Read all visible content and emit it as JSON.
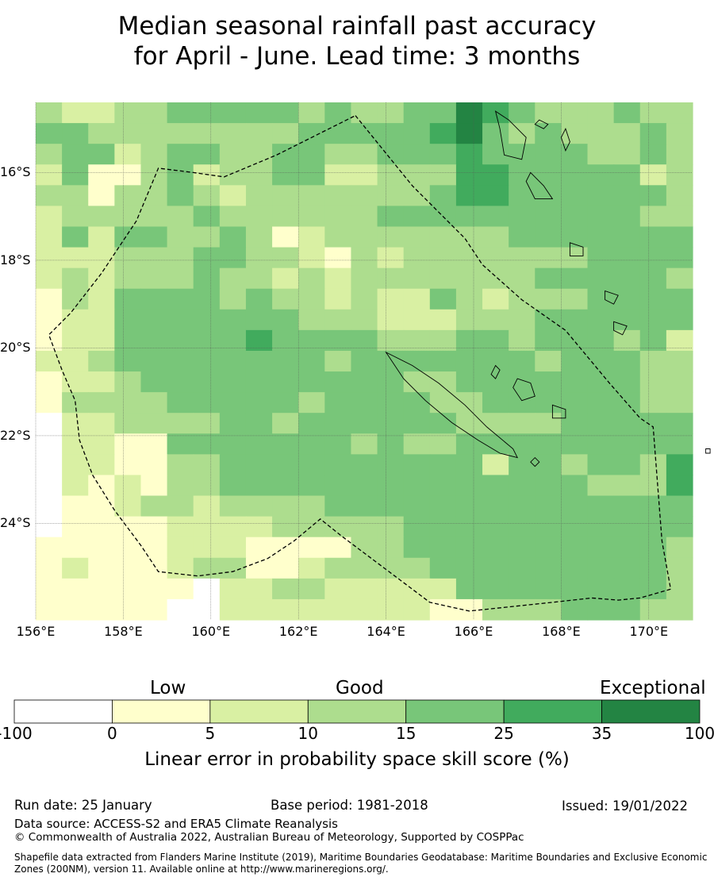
{
  "title": {
    "line1": "Median seasonal rainfall past accuracy",
    "line2": "for April - June. Lead time: 3 months"
  },
  "map": {
    "lon_range": [
      156.0,
      171.0
    ],
    "lat_range": [
      -26.2,
      -14.4
    ],
    "x_ticks": [
      {
        "lon": 156,
        "label": "156°E"
      },
      {
        "lon": 158,
        "label": "158°E"
      },
      {
        "lon": 160,
        "label": "160°E"
      },
      {
        "lon": 162,
        "label": "162°E"
      },
      {
        "lon": 164,
        "label": "164°E"
      },
      {
        "lon": 166,
        "label": "166°E"
      },
      {
        "lon": 168,
        "label": "168°E"
      },
      {
        "lon": 170,
        "label": "170°E"
      }
    ],
    "y_ticks": [
      {
        "lat": -16,
        "label": "16°S"
      },
      {
        "lat": -18,
        "label": "18°S"
      },
      {
        "lat": -20,
        "label": "20°S"
      },
      {
        "lat": -22,
        "label": "22°S"
      },
      {
        "lat": -24,
        "label": "24°S"
      }
    ],
    "eez_boundary": [
      [
        163.3,
        -14.7
      ],
      [
        164.6,
        -16.3
      ],
      [
        165.8,
        -17.5
      ],
      [
        166.2,
        -18.1
      ],
      [
        167.1,
        -18.9
      ],
      [
        168.1,
        -19.6
      ],
      [
        169.1,
        -20.8
      ],
      [
        169.8,
        -21.6
      ],
      [
        170.1,
        -21.8
      ],
      [
        170.3,
        -24.4
      ],
      [
        170.5,
        -25.5
      ],
      [
        169.8,
        -25.7
      ],
      [
        169.3,
        -25.75
      ],
      [
        168.7,
        -25.7
      ],
      [
        167.8,
        -25.8
      ],
      [
        165.9,
        -26.0
      ],
      [
        165.0,
        -25.8
      ],
      [
        164.2,
        -25.2
      ],
      [
        163.0,
        -24.3
      ],
      [
        162.5,
        -23.9
      ],
      [
        161.9,
        -24.4
      ],
      [
        161.3,
        -24.8
      ],
      [
        160.5,
        -25.1
      ],
      [
        159.7,
        -25.2
      ],
      [
        158.8,
        -25.1
      ],
      [
        158.4,
        -24.5
      ],
      [
        157.8,
        -23.7
      ],
      [
        157.3,
        -22.9
      ],
      [
        157.0,
        -22.1
      ],
      [
        156.9,
        -21.2
      ],
      [
        156.6,
        -20.5
      ],
      [
        156.3,
        -19.7
      ],
      [
        156.8,
        -19.2
      ],
      [
        157.5,
        -18.3
      ],
      [
        158.3,
        -17.1
      ],
      [
        158.8,
        -15.9
      ],
      [
        159.6,
        -16.0
      ],
      [
        160.3,
        -16.1
      ],
      [
        161.5,
        -15.6
      ],
      [
        163.3,
        -14.7
      ]
    ],
    "grid_legend": {
      "0": "<0",
      "1": "0-5",
      "2": "5-10",
      "3": "10-15",
      "4": "15-25",
      "5": "25-35",
      "6": "35-100"
    },
    "grid_rows": [
      "3223344444343344654333433",
      "4433333333444445643433343",
      "3442344334433444544443343",
      "2411342334422333554444423",
      "3313343233333334554444443",
      "2333334333333444444444433",
      "2424433431233333334444444",
      "2223334433213233333334444",
      "2323334332323333333444443",
      "1324444343323224323334444",
      "1224444444333222333444444",
      "1224444454444333443444342",
      "2234444444434444444344433",
      "1223444444444433444444433",
      "1333344444344443344444433",
      "0223333443444444333344444",
      "0221144444443433444444444",
      "0221133444444444424434435",
      "0212133444444444444443335",
      "0112332333344444444444444",
      "0111122223333344444444444",
      "1111122211113344444444443",
      "1211123311233334444444443",
      "1111110223322222444444443",
      "1111100222222221133344433"
    ],
    "islands": [
      {
        "name": "Espiritu Santo",
        "points": [
          [
            166.5,
            -14.6
          ],
          [
            166.8,
            -14.8
          ],
          [
            167.2,
            -15.2
          ],
          [
            167.1,
            -15.7
          ],
          [
            166.7,
            -15.6
          ],
          [
            166.6,
            -15.0
          ],
          [
            166.5,
            -14.6
          ]
        ]
      },
      {
        "name": "Malakula",
        "points": [
          [
            167.3,
            -16.0
          ],
          [
            167.6,
            -16.3
          ],
          [
            167.8,
            -16.6
          ],
          [
            167.4,
            -16.6
          ],
          [
            167.2,
            -16.2
          ],
          [
            167.3,
            -16.0
          ]
        ]
      },
      {
        "name": "Efate",
        "points": [
          [
            168.2,
            -17.6
          ],
          [
            168.5,
            -17.7
          ],
          [
            168.5,
            -17.9
          ],
          [
            168.2,
            -17.9
          ],
          [
            168.2,
            -17.6
          ]
        ]
      },
      {
        "name": "Erromango",
        "points": [
          [
            169.0,
            -18.7
          ],
          [
            169.3,
            -18.8
          ],
          [
            169.2,
            -19.0
          ],
          [
            169.0,
            -18.9
          ],
          [
            169.0,
            -18.7
          ]
        ]
      },
      {
        "name": "Tanna",
        "points": [
          [
            169.2,
            -19.4
          ],
          [
            169.5,
            -19.5
          ],
          [
            169.4,
            -19.7
          ],
          [
            169.2,
            -19.6
          ],
          [
            169.2,
            -19.4
          ]
        ]
      },
      {
        "name": "Grande Terre",
        "points": [
          [
            164.0,
            -20.1
          ],
          [
            164.6,
            -20.4
          ],
          [
            165.2,
            -20.8
          ],
          [
            165.8,
            -21.3
          ],
          [
            166.3,
            -21.8
          ],
          [
            166.9,
            -22.3
          ],
          [
            167.0,
            -22.5
          ],
          [
            166.6,
            -22.4
          ],
          [
            166.1,
            -22.1
          ],
          [
            165.5,
            -21.7
          ],
          [
            164.9,
            -21.2
          ],
          [
            164.4,
            -20.7
          ],
          [
            164.0,
            -20.1
          ]
        ]
      },
      {
        "name": "Lifou",
        "points": [
          [
            167.0,
            -20.7
          ],
          [
            167.3,
            -20.8
          ],
          [
            167.4,
            -21.1
          ],
          [
            167.1,
            -21.2
          ],
          [
            166.9,
            -20.9
          ],
          [
            167.0,
            -20.7
          ]
        ]
      },
      {
        "name": "Mare",
        "points": [
          [
            167.8,
            -21.3
          ],
          [
            168.1,
            -21.4
          ],
          [
            168.1,
            -21.6
          ],
          [
            167.8,
            -21.6
          ],
          [
            167.8,
            -21.3
          ]
        ]
      },
      {
        "name": "Ouvea",
        "points": [
          [
            166.5,
            -20.4
          ],
          [
            166.6,
            -20.5
          ],
          [
            166.5,
            -20.7
          ],
          [
            166.4,
            -20.6
          ],
          [
            166.5,
            -20.4
          ]
        ]
      },
      {
        "name": "Isle of Pines",
        "points": [
          [
            167.4,
            -22.5
          ],
          [
            167.5,
            -22.6
          ],
          [
            167.4,
            -22.7
          ],
          [
            167.3,
            -22.6
          ],
          [
            167.4,
            -22.5
          ]
        ]
      },
      {
        "name": "Maewo",
        "points": [
          [
            168.1,
            -15.0
          ],
          [
            168.2,
            -15.3
          ],
          [
            168.1,
            -15.5
          ],
          [
            168.0,
            -15.2
          ],
          [
            168.1,
            -15.0
          ]
        ]
      },
      {
        "name": "Gaua",
        "points": [
          [
            167.5,
            -14.8
          ],
          [
            167.7,
            -14.9
          ],
          [
            167.6,
            -15.0
          ],
          [
            167.4,
            -14.9
          ],
          [
            167.5,
            -14.8
          ]
        ]
      },
      {
        "name": "Matthew",
        "points": [
          [
            171.3,
            -22.3
          ],
          [
            171.4,
            -22.3
          ],
          [
            171.4,
            -22.4
          ],
          [
            171.3,
            -22.4
          ],
          [
            171.3,
            -22.3
          ]
        ]
      }
    ]
  },
  "colorbar": {
    "colors": [
      "#ffffff",
      "#ffffcc",
      "#d9f0a3",
      "#addd8e",
      "#78c679",
      "#41ab5d",
      "#238443"
    ],
    "ticks": [
      "-100",
      "0",
      "5",
      "10",
      "15",
      "25",
      "35",
      "100"
    ],
    "categories": {
      "low": "Low",
      "good": "Good",
      "exceptional": "Exceptional"
    },
    "title": "Linear error in probability space skill score (%)"
  },
  "footer": {
    "run_date": "Run date: 25 January",
    "base_period": "Base period: 1981-2018",
    "issued": "Issued: 19/01/2022",
    "data_source": "Data source: ACCESS-S2 and ERA5 Climate Reanalysis",
    "copyright": "© Commonwealth of Australia 2022, Australian Bureau of Meteorology, Supported by COSPPac",
    "shapefile": "Shapefile data extracted from Flanders Marine Institute (2019), Maritime Boundaries Geodatabase: Maritime Boundaries and Exclusive Economic Zones (200NM), version 11. Available online at http://www.marineregions.org/."
  }
}
